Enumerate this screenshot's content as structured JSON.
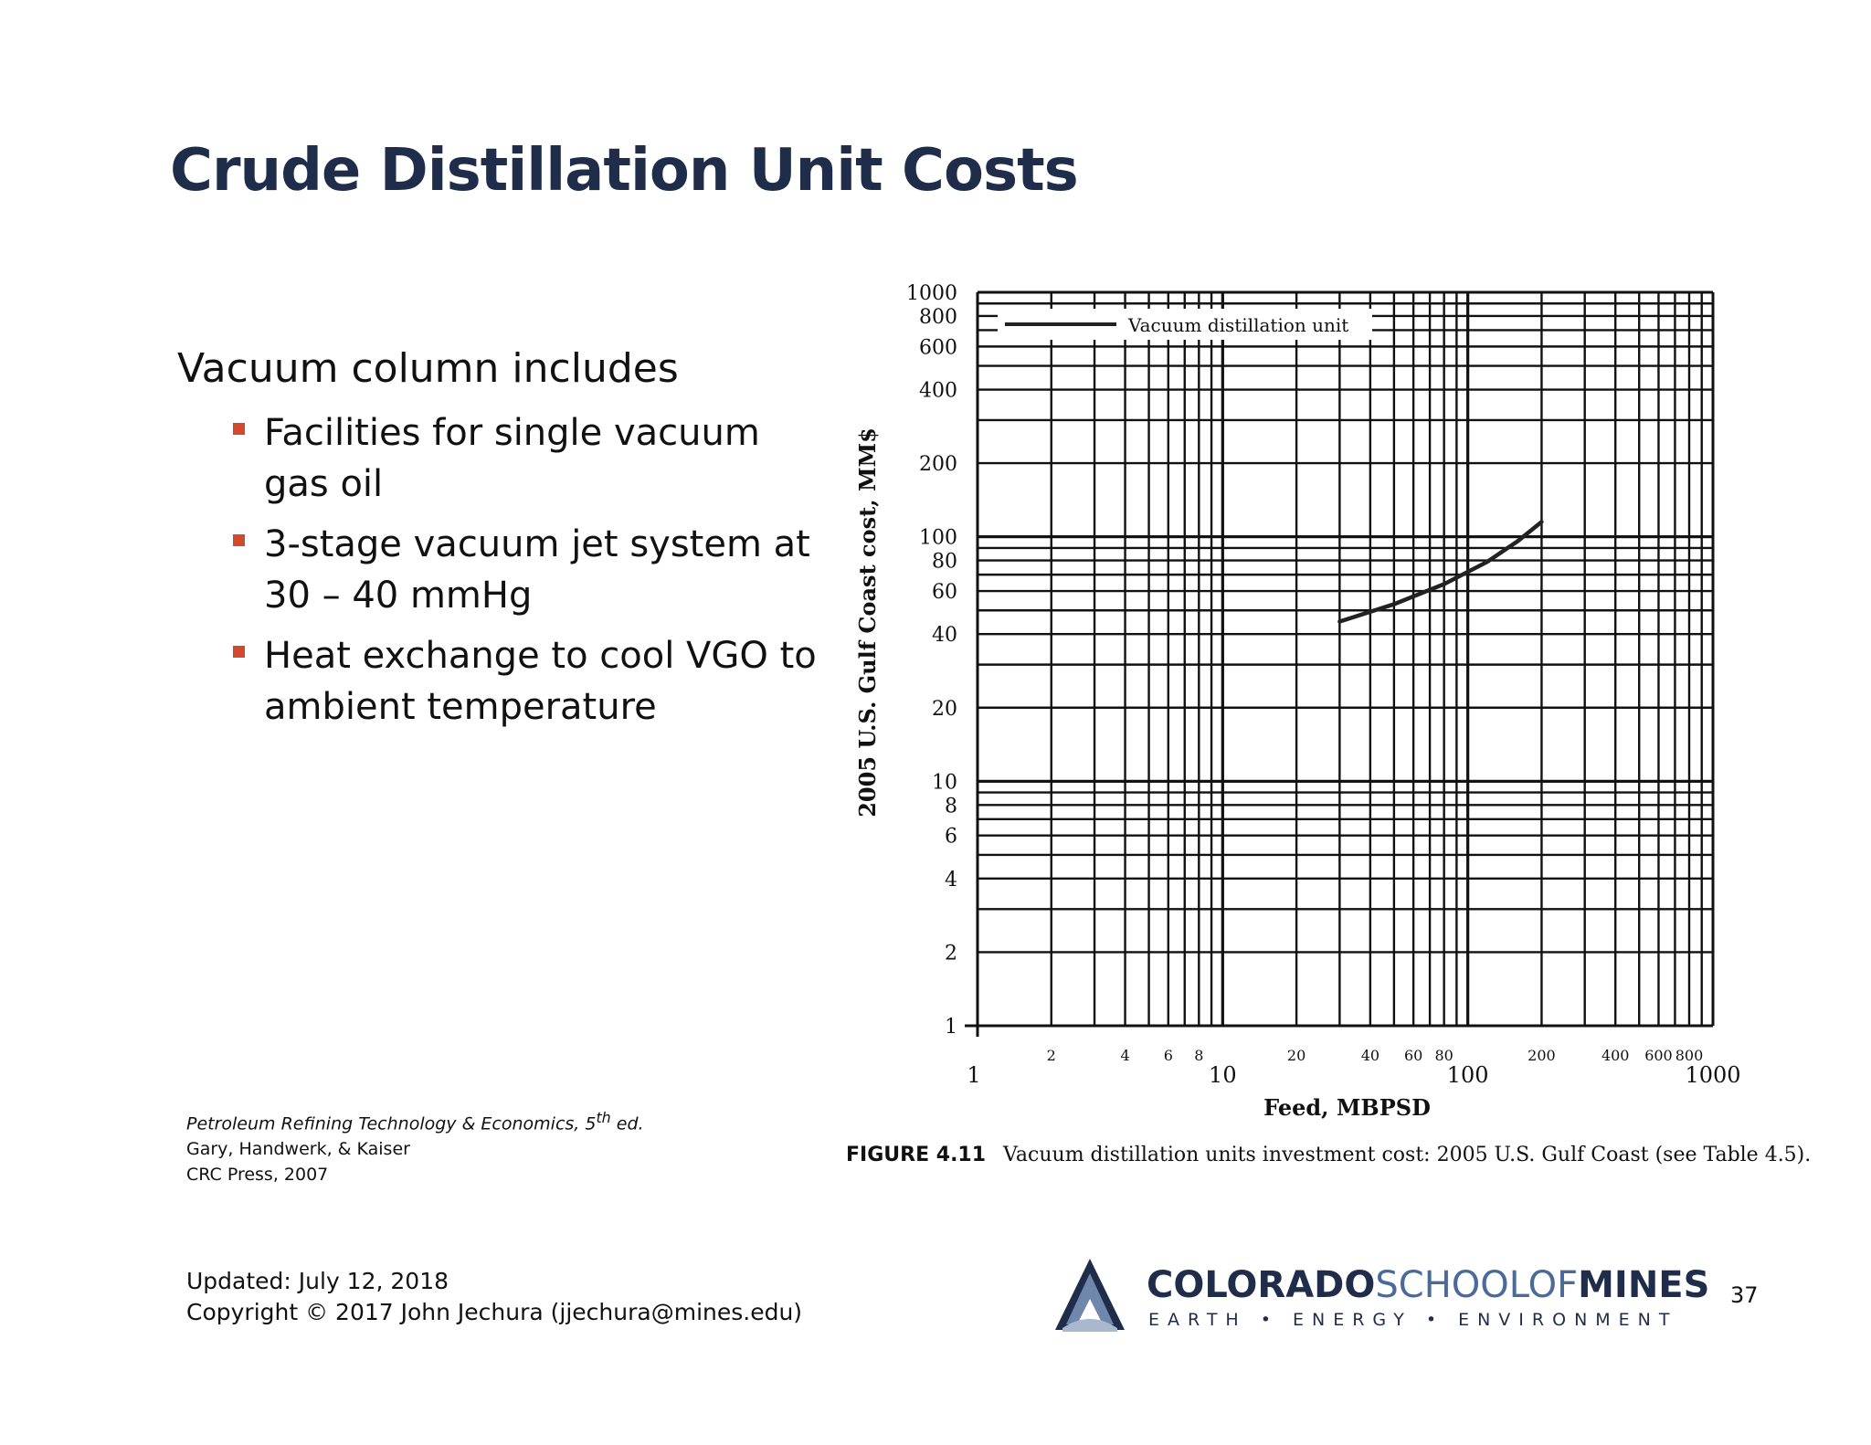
{
  "slide": {
    "title": "Crude Distillation Unit Costs",
    "intro": "Vacuum column includes",
    "bullets": [
      "Facilities for single vacuum gas oil",
      "3-stage vacuum jet system at 30 – 40 mmHg",
      "Heat exchange to cool VGO to ambient temperature"
    ],
    "citation": {
      "book": "Petroleum Refining Technology & Economics, 5",
      "book_sup": "th",
      "book_tail": " ed.",
      "authors": "Gary, Handwerk, & Kaiser",
      "publisher": "CRC Press, 2007"
    },
    "footer": {
      "updated": "Updated: July 12, 2018",
      "copyright": "Copyright © 2017 John Jechura (jjechura@mines.edu)"
    },
    "page_number": "37",
    "logo": {
      "part1": "COLORADO",
      "part2": "SCHOOL",
      "part3": "OF",
      "part4": "MINES",
      "tagline": "EARTH • ENERGY • ENVIRONMENT"
    },
    "accent_color": "#d24a2e",
    "title_color": "#1f2d4a"
  },
  "figure": {
    "label": "FIGURE 4.11",
    "caption": "Vacuum distillation units investment cost: 2005 U.S. Gulf Coast (see Table 4.5)."
  },
  "chart_data": {
    "type": "line",
    "xlabel": "Feed, MBPSD",
    "ylabel": "2005 U.S. Gulf Coast cost, MM$",
    "x_scale": "log",
    "y_scale": "log",
    "xlim": [
      1,
      1000
    ],
    "ylim": [
      1,
      1000
    ],
    "grid": true,
    "legend_position": "top-left",
    "x_major_ticks": [
      "1",
      "10",
      "100",
      "1000"
    ],
    "x_minor_tick_labels": [
      "2",
      "4",
      "6",
      "8",
      "20",
      "40",
      "60",
      "80",
      "200",
      "400",
      "600",
      "800"
    ],
    "y_tick_labels": [
      "1",
      "2",
      "4",
      "6",
      "8",
      "10",
      "20",
      "40",
      "60",
      "80",
      "100",
      "200",
      "400",
      "600",
      "800",
      "1000"
    ],
    "series": [
      {
        "name": "Vacuum distillation unit",
        "x": [
          30,
          50,
          80,
          120,
          160,
          200
        ],
        "y": [
          45,
          53,
          64,
          79,
          96,
          115
        ]
      }
    ]
  }
}
